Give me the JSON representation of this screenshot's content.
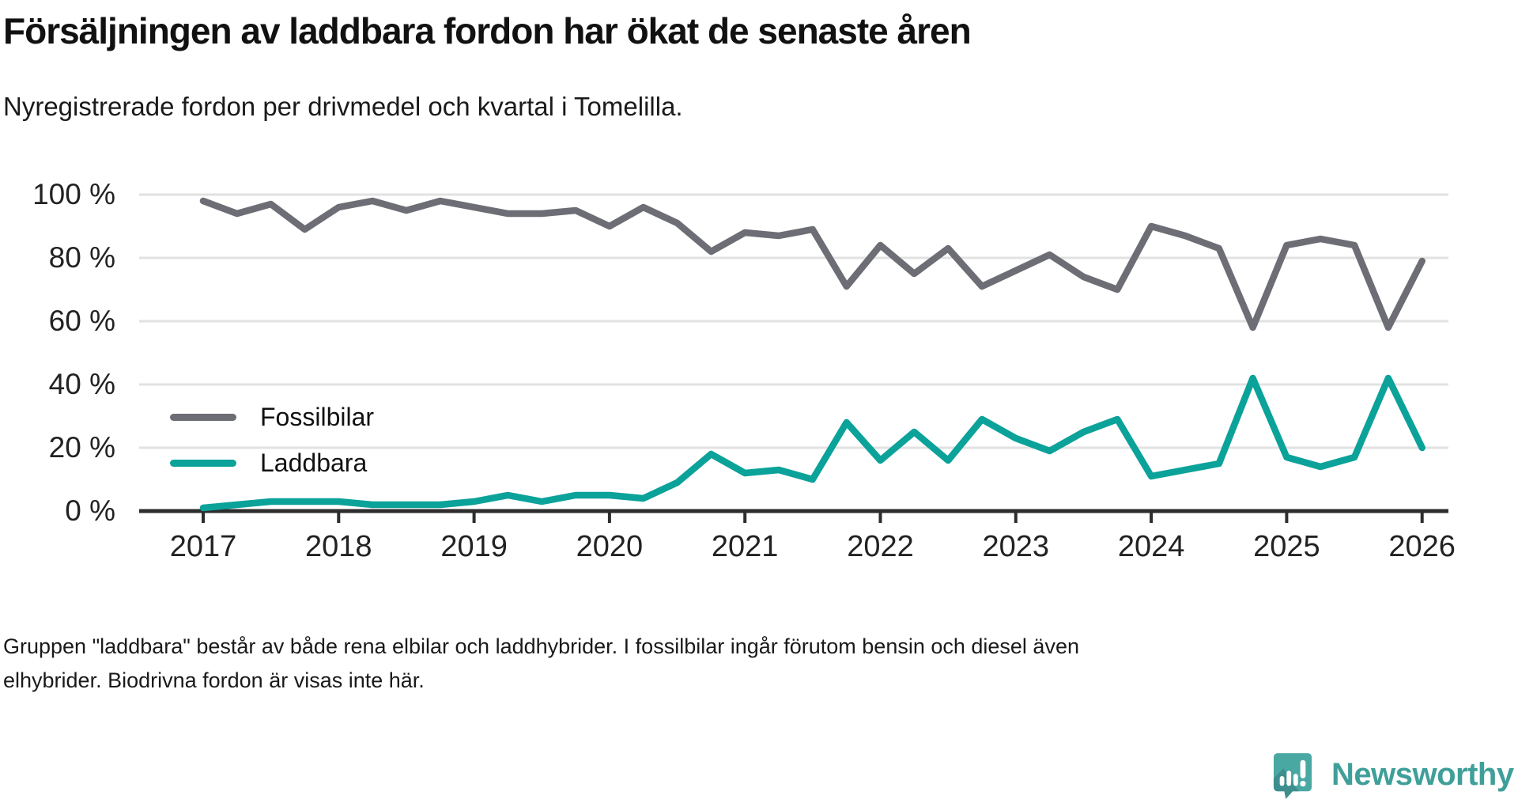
{
  "header": {
    "title": "Försäljningen av laddbara fordon har ökat de senaste åren",
    "subtitle": "Nyregistrerade fordon per drivmedel och kvartal i Tomelilla."
  },
  "footer": {
    "lines": [
      "Gruppen \"laddbara\" består av både rena elbilar och laddhybrider. I fossilbilar ingår förutom bensin och diesel även",
      "elhybrider. Biodrivna fordon är visas inte här."
    ]
  },
  "brand": {
    "name": "Newsworthy",
    "icon": "newsworthy-speech-bubble-chart-icon",
    "icon_color": "#4aa8a2",
    "icon_shadow_color": "#3e8e8d",
    "wordmark_color": "#3f9f99"
  },
  "chart_data": {
    "type": "line",
    "title": "Försäljningen av laddbara fordon har ökat de senaste åren",
    "subtitle": "Nyregistrerade fordon per drivmedel och kvartal i Tomelilla.",
    "xlabel": "",
    "ylabel": "",
    "unit": "%",
    "ylim": [
      0,
      100
    ],
    "grid": "horizontal",
    "legend_position": "inside-lower-left",
    "x_frequency": "quarterly",
    "categories": [
      "2017K1",
      "2017K2",
      "2017K3",
      "2017K4",
      "2018K1",
      "2018K2",
      "2018K3",
      "2018K4",
      "2019K1",
      "2019K2",
      "2019K3",
      "2019K4",
      "2020K1",
      "2020K2",
      "2020K3",
      "2020K4",
      "2021K1",
      "2021K2",
      "2021K3",
      "2021K4",
      "2022K1",
      "2022K2",
      "2022K3",
      "2022K4",
      "2023K1",
      "2023K2",
      "2023K3",
      "2023K4",
      "2024K1",
      "2024K2",
      "2024K3",
      "2024K4",
      "2025K1",
      "2025K2",
      "2025K3",
      "2025K4",
      "2026K1"
    ],
    "series": [
      {
        "name": "Fossilbilar",
        "color": "#6d6d76",
        "values": [
          98,
          94,
          97,
          89,
          96,
          98,
          95,
          98,
          96,
          94,
          94,
          95,
          90,
          96,
          91,
          82,
          88,
          87,
          89,
          71,
          84,
          75,
          83,
          71,
          76,
          81,
          74,
          70,
          90,
          87,
          83,
          58,
          84,
          86,
          84,
          58,
          79
        ]
      },
      {
        "name": "Laddbara",
        "color": "#0ba29a",
        "values": [
          1,
          2,
          3,
          3,
          3,
          2,
          2,
          2,
          3,
          5,
          3,
          5,
          5,
          4,
          9,
          18,
          12,
          13,
          10,
          28,
          16,
          25,
          16,
          29,
          23,
          19,
          25,
          29,
          11,
          13,
          15,
          42,
          17,
          14,
          17,
          42,
          20
        ]
      }
    ],
    "yticks": [
      {
        "value": 0,
        "label": "0 %"
      },
      {
        "value": 20,
        "label": "20 %"
      },
      {
        "value": 40,
        "label": "40 %"
      },
      {
        "value": 60,
        "label": "60 %"
      },
      {
        "value": 80,
        "label": "80 %"
      },
      {
        "value": 100,
        "label": "100 %"
      }
    ],
    "xticks": [
      {
        "value": 2017,
        "label": "2017"
      },
      {
        "value": 2018,
        "label": "2018"
      },
      {
        "value": 2019,
        "label": "2019"
      },
      {
        "value": 2020,
        "label": "2020"
      },
      {
        "value": 2021,
        "label": "2021"
      },
      {
        "value": 2022,
        "label": "2022"
      },
      {
        "value": 2023,
        "label": "2023"
      },
      {
        "value": 2024,
        "label": "2024"
      },
      {
        "value": 2025,
        "label": "2025"
      },
      {
        "value": 2026,
        "label": "2026"
      }
    ]
  }
}
